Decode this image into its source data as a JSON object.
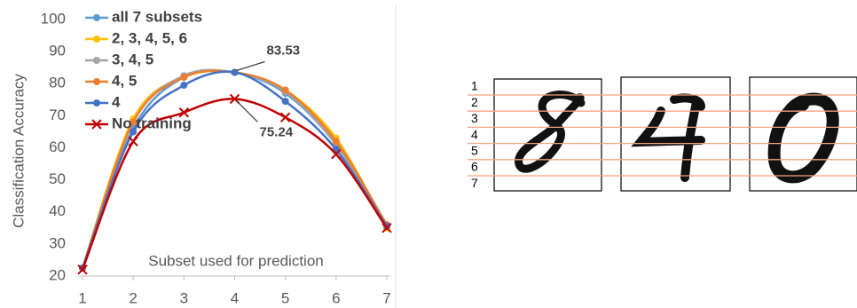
{
  "chart_data": {
    "type": "line",
    "y_label": "Classification Accuracy",
    "x_label": "Subset used for prediction",
    "x": [
      1,
      2,
      3,
      4,
      5,
      6,
      7
    ],
    "xlim": [
      1,
      7
    ],
    "xticks": [
      1,
      2,
      3,
      4,
      5,
      6,
      7
    ],
    "ylim": [
      20,
      100
    ],
    "yticks": [
      20,
      30,
      40,
      50,
      60,
      70,
      80,
      90,
      100
    ],
    "grid": false,
    "legend": "upper left",
    "smooth": true,
    "series": [
      {
        "name": "all 7 subsets",
        "color": "#5B9BD5",
        "marker": "o",
        "values": [
          22.5,
          66,
          82,
          83.5,
          77,
          61,
          36
        ]
      },
      {
        "name": "2, 3, 4, 5, 6",
        "color": "#FFC000",
        "marker": "o",
        "values": [
          22.5,
          69,
          82,
          83.5,
          78,
          63,
          35
        ]
      },
      {
        "name": "3, 4, 5",
        "color": "#A5A5A5",
        "marker": "o",
        "values": [
          22.5,
          68,
          82.5,
          83.5,
          77.5,
          61,
          36
        ]
      },
      {
        "name": "4, 5",
        "color": "#ED7D31",
        "marker": "o",
        "values": [
          22.5,
          68,
          82,
          83.5,
          78,
          62,
          36
        ]
      },
      {
        "name": "4",
        "color": "#4472C4",
        "marker": "o",
        "values": [
          22.5,
          65,
          79.5,
          83.53,
          74.5,
          59.5,
          35.5
        ]
      },
      {
        "name": "No training",
        "color": "#C00000",
        "marker": "x",
        "values": [
          22,
          62,
          71,
          75.24,
          69.5,
          58,
          35
        ]
      }
    ],
    "annotations": [
      {
        "label": "83.53",
        "x": 4,
        "y": 83.53
      },
      {
        "label": "75.24",
        "x": 4,
        "y": 75.24
      }
    ]
  },
  "digit_panel": {
    "row_labels": [
      "1",
      "2",
      "3",
      "4",
      "5",
      "6",
      "7"
    ]
  }
}
